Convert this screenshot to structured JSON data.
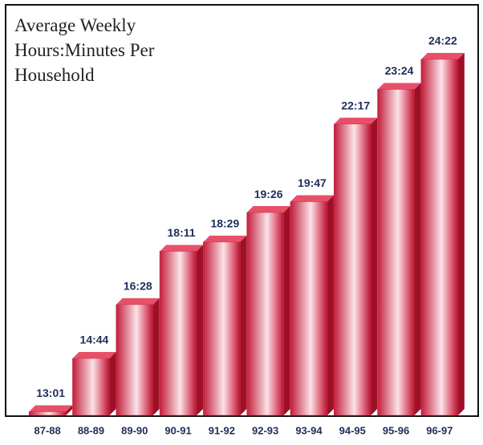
{
  "chart_data": {
    "type": "bar",
    "title": "Average Weekly Hours:Minutes Per Household",
    "categories": [
      "87-88",
      "88-89",
      "89-90",
      "90-91",
      "91-92",
      "92-93",
      "93-94",
      "94-95",
      "95-96",
      "96-97"
    ],
    "values": [
      13.017,
      14.733,
      16.467,
      18.183,
      18.483,
      19.433,
      19.783,
      22.283,
      23.4,
      24.367
    ],
    "value_labels": [
      "13:01",
      "14:44",
      "16:28",
      "18:11",
      "18:29",
      "19:26",
      "19:47",
      "22:17",
      "23:24",
      "24:22"
    ],
    "color": "#c8283c",
    "ylim": [
      12.9,
      24.6
    ]
  }
}
